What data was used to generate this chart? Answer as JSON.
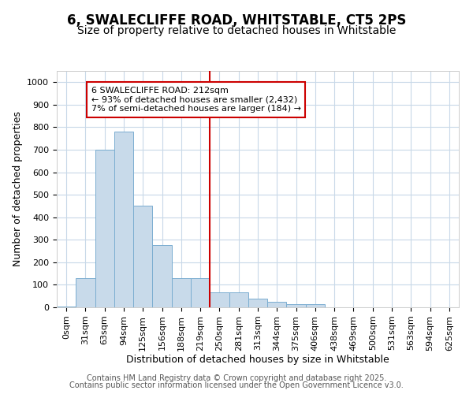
{
  "title": "6, SWALECLIFFE ROAD, WHITSTABLE, CT5 2PS",
  "subtitle": "Size of property relative to detached houses in Whitstable",
  "xlabel": "Distribution of detached houses by size in Whitstable",
  "ylabel": "Number of detached properties",
  "bin_labels": [
    "0sqm",
    "31sqm",
    "63sqm",
    "94sqm",
    "125sqm",
    "156sqm",
    "188sqm",
    "219sqm",
    "250sqm",
    "281sqm",
    "313sqm",
    "344sqm",
    "375sqm",
    "406sqm",
    "438sqm",
    "469sqm",
    "500sqm",
    "531sqm",
    "563sqm",
    "594sqm",
    "625sqm"
  ],
  "bar_values": [
    3,
    130,
    700,
    780,
    450,
    275,
    130,
    130,
    65,
    65,
    40,
    25,
    15,
    15,
    0,
    0,
    0,
    0,
    0,
    0,
    0
  ],
  "bar_color": "#c8daea",
  "bar_edge_color": "#7aadd0",
  "vline_index": 7,
  "vline_color": "#cc0000",
  "annotation_text": "6 SWALECLIFFE ROAD: 212sqm\n← 93% of detached houses are smaller (2,432)\n7% of semi-detached houses are larger (184) →",
  "annotation_box_color": "#ffffff",
  "annotation_box_edge": "#cc0000",
  "ylim": [
    0,
    1050
  ],
  "yticks": [
    0,
    100,
    200,
    300,
    400,
    500,
    600,
    700,
    800,
    900,
    1000
  ],
  "footer1": "Contains HM Land Registry data © Crown copyright and database right 2025.",
  "footer2": "Contains public sector information licensed under the Open Government Licence v3.0.",
  "bg_color": "#ffffff",
  "plot_bg_color": "#ffffff",
  "grid_color": "#c8d8e8",
  "title_fontsize": 12,
  "subtitle_fontsize": 10,
  "label_fontsize": 9,
  "tick_fontsize": 8,
  "annotation_fontsize": 8,
  "footer_fontsize": 7
}
